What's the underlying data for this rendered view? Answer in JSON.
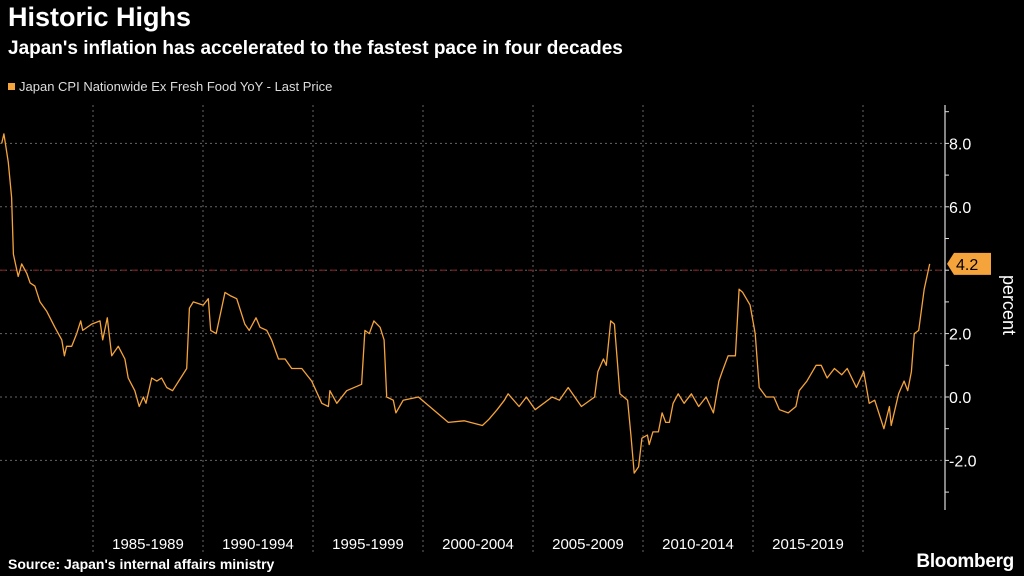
{
  "title": "Historic Highs",
  "subtitle": "Japan's inflation has accelerated to the fastest pace in four decades",
  "source": "Source: Japan's internal affairs ministry",
  "logo": "Bloomberg",
  "colors": {
    "series": "#f5a33b",
    "grid": "#666666",
    "refline": "#7a2020",
    "background": "#000000"
  },
  "chart_data": {
    "type": "line",
    "title": "Historic Highs",
    "subtitle": "Japan's inflation has accelerated to the fastest pace in four decades",
    "ylabel": "percent",
    "xlabel": "",
    "ylim": [
      -3.5,
      9.0
    ],
    "xlim": [
      1980.8,
      2023.2
    ],
    "yticks": [
      {
        "value": 8,
        "label": "8.0"
      },
      {
        "value": 6,
        "label": "6.0"
      },
      {
        "value": 2,
        "label": "2.0"
      },
      {
        "value": 0,
        "label": "0.0"
      },
      {
        "value": -2,
        "label": "-2.0"
      }
    ],
    "xticks": [
      {
        "start": 1985,
        "label": "1985-1989"
      },
      {
        "start": 1990,
        "label": "1990-1994"
      },
      {
        "start": 1995,
        "label": "1995-1999"
      },
      {
        "start": 2000,
        "label": "2000-2004"
      },
      {
        "start": 2005,
        "label": "2005-2009"
      },
      {
        "start": 2010,
        "label": "2010-2014"
      },
      {
        "start": 2015,
        "label": "2015-2019"
      }
    ],
    "grid": true,
    "legend": {
      "position": "top-left",
      "entries": [
        "Japan CPI Nationwide Ex Fresh Food YoY - Last Price"
      ]
    },
    "last_value": {
      "value": 4.2,
      "label": "4.2"
    },
    "reference_line": 4.0,
    "series": [
      {
        "name": "Japan CPI Nationwide Ex Fresh Food YoY - Last Price",
        "x": [
          1980.85,
          1980.95,
          1981.15,
          1981.3,
          1981.38,
          1981.6,
          1981.76,
          1981.99,
          1982.14,
          1982.36,
          1982.59,
          1982.9,
          1983.27,
          1983.58,
          1983.7,
          1983.8,
          1984.03,
          1984.26,
          1984.44,
          1984.53,
          1984.94,
          1985.32,
          1985.44,
          1985.65,
          1985.85,
          1986.15,
          1986.45,
          1986.6,
          1986.9,
          1987.1,
          1987.29,
          1987.41,
          1987.67,
          1987.9,
          1988.12,
          1988.35,
          1988.62,
          1989.26,
          1989.38,
          1989.56,
          1990.01,
          1990.24,
          1990.35,
          1990.6,
          1991.0,
          1991.23,
          1991.53,
          1991.9,
          1992.1,
          1992.41,
          1992.59,
          1992.9,
          1993.12,
          1993.43,
          1993.73,
          1994.03,
          1994.49,
          1994.94,
          1995.4,
          1995.7,
          1995.77,
          1996.08,
          1996.53,
          1997.21,
          1997.36,
          1997.56,
          1997.77,
          1998.05,
          1998.23,
          1998.35,
          1998.65,
          1998.77,
          1999.1,
          1999.79,
          2000.3,
          2001.15,
          2001.87,
          2002.7,
          2003.0,
          2003.37,
          2003.7,
          2003.87,
          2004.37,
          2004.7,
          2005.1,
          2005.87,
          2006.2,
          2006.6,
          2007.2,
          2007.8,
          2007.95,
          2008.2,
          2008.33,
          2008.53,
          2008.7,
          2008.95,
          2009.3,
          2009.45,
          2009.6,
          2009.8,
          2009.95,
          2010.2,
          2010.28,
          2010.45,
          2010.7,
          2010.87,
          2011.03,
          2011.2,
          2011.37,
          2011.6,
          2011.87,
          2012.2,
          2012.53,
          2012.87,
          2013.2,
          2013.45,
          2013.6,
          2013.87,
          2014.2,
          2014.37,
          2014.53,
          2014.87,
          2015.1,
          2015.28,
          2015.6,
          2015.95,
          2016.2,
          2016.6,
          2016.95,
          2017.1,
          2017.45,
          2017.87,
          2018.1,
          2018.37,
          2018.7,
          2019.03,
          2019.28,
          2019.7,
          2020.03,
          2020.28,
          2020.53,
          2020.95,
          2021.2,
          2021.28,
          2021.62,
          2021.87,
          2022.03,
          2022.2,
          2022.33,
          2022.53,
          2022.78,
          2023.03
        ],
        "y": [
          8.0,
          8.3,
          7.4,
          6.3,
          4.5,
          3.8,
          4.2,
          3.9,
          3.6,
          3.5,
          3.0,
          2.7,
          2.2,
          1.8,
          1.3,
          1.6,
          1.6,
          2.0,
          2.4,
          2.1,
          2.3,
          2.4,
          1.8,
          2.5,
          1.3,
          1.6,
          1.2,
          0.6,
          0.2,
          -0.3,
          0.0,
          -0.2,
          0.6,
          0.5,
          0.6,
          0.3,
          0.2,
          0.9,
          2.8,
          3.0,
          2.9,
          3.1,
          2.1,
          2.0,
          3.3,
          3.2,
          3.1,
          2.3,
          2.1,
          2.5,
          2.2,
          2.1,
          1.8,
          1.2,
          1.2,
          0.9,
          0.9,
          0.5,
          -0.2,
          -0.3,
          0.2,
          -0.2,
          0.2,
          0.4,
          2.1,
          2.0,
          2.4,
          2.2,
          1.8,
          0.0,
          -0.1,
          -0.5,
          -0.1,
          0.0,
          -0.3,
          -0.8,
          -0.75,
          -0.9,
          -0.7,
          -0.4,
          -0.1,
          0.1,
          -0.3,
          0.0,
          -0.4,
          0.0,
          -0.1,
          0.3,
          -0.3,
          0.0,
          0.8,
          1.2,
          1.0,
          2.4,
          2.3,
          0.1,
          -0.1,
          -1.2,
          -2.4,
          -2.2,
          -1.3,
          -1.2,
          -1.5,
          -1.1,
          -1.1,
          -0.5,
          -0.8,
          -0.8,
          -0.2,
          0.1,
          -0.2,
          0.1,
          -0.3,
          0.0,
          -0.5,
          0.5,
          0.8,
          1.3,
          1.3,
          3.4,
          3.3,
          2.9,
          2.0,
          0.3,
          0.0,
          0.0,
          -0.4,
          -0.5,
          -0.3,
          0.2,
          0.5,
          1.0,
          1.0,
          0.6,
          0.9,
          0.7,
          0.9,
          0.3,
          0.8,
          -0.2,
          -0.1,
          -1.0,
          -0.3,
          -0.9,
          0.1,
          0.5,
          0.2,
          0.8,
          2.0,
          2.1,
          3.4,
          4.2
        ]
      }
    ]
  }
}
